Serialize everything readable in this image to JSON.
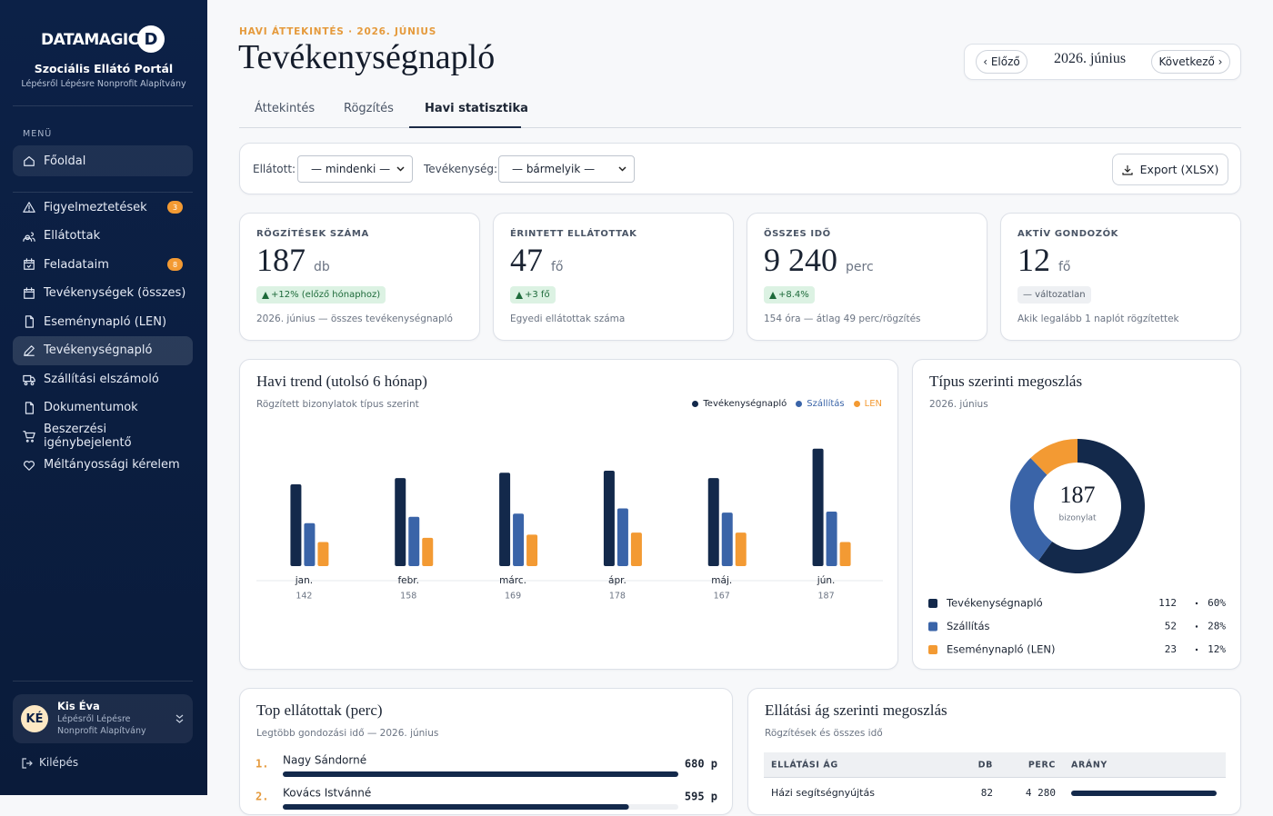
{
  "sidebar": {
    "brand": "DATAMAGIC",
    "brand_icon": "D",
    "portal": "Szociális Ellátó Portál",
    "org": "Lépésről Lépésre Nonprofit Alapítvány",
    "menu_label": "MENÜ",
    "home": "Főoldal",
    "menu": [
      {
        "label": "Figyelmeztetések",
        "badge": 3
      },
      {
        "label": "Ellátottak"
      },
      {
        "label": "Feladataim",
        "badge": 8
      },
      {
        "label": "Tevékenységek (összes)"
      },
      {
        "label": "Eseménynapló (LEN)"
      },
      {
        "label": "Tevékenységnapló",
        "active": true
      },
      {
        "label": "Szállítási elszámoló"
      },
      {
        "label": "Dokumentumok"
      },
      {
        "label": "Beszerzési igénybejelentő"
      },
      {
        "label": "Méltányossági kérelem"
      }
    ],
    "user": {
      "initials": "KÉ",
      "name": "Kis Éva",
      "org": "Lépésről Lépésre Nonprofit Alapítvány"
    },
    "logout": "Kilépés"
  },
  "header": {
    "eyebrow": "HAVI ÁTTEKINTÉS · 2026. JÚNIUS",
    "title": "Tevékenységnapló",
    "prev": "‹ Előző",
    "month": "2026. június",
    "next": "Következő ›"
  },
  "tabs": {
    "items": [
      "Áttekintés",
      "Rögzítés",
      "Havi statisztika"
    ],
    "active": 2
  },
  "filters": {
    "client_label": "Ellátott:",
    "client_value": "— mindenki —",
    "activity_label": "Tevékenység:",
    "activity_value": "— bármelyik —",
    "export": "Export (XLSX)"
  },
  "kpis": [
    {
      "label": "RÖGZÍTÉSEK SZÁMA",
      "value": 187,
      "unit": "db",
      "delta": "+12% (előző hónaphoz)",
      "trend": "up",
      "note": "2026. június — összes tevékenységnapló"
    },
    {
      "label": "ÉRINTETT ELLÁTOTTAK",
      "value": 47,
      "unit": "fő",
      "delta": "+3 fő",
      "trend": "up",
      "note": "Egyedi ellátottak száma"
    },
    {
      "label": "ÖSSZES IDŐ",
      "value": "9 240",
      "unit": "perc",
      "delta": "+8.4%",
      "trend": "up",
      "note": "154 óra — átlag 49 perc/rögzítés"
    },
    {
      "label": "AKTÍV GONDOZÓK",
      "value": 12,
      "unit": "fő",
      "delta": "— változatlan",
      "trend": "flat",
      "note": "Akik legalább 1 naplót rögzítettek"
    }
  ],
  "trend": {
    "type": "bar",
    "title": "Havi trend (utolsó 6 hónap)",
    "subtitle": "Rögzített bizonylatok típus szerint",
    "categories": [
      "jan.",
      "febr.",
      "márc.",
      "ápr.",
      "máj.",
      "jún."
    ],
    "totals": [
      142,
      158,
      169,
      178,
      167,
      187
    ],
    "ylim": [
      0,
      130
    ],
    "series": [
      {
        "name": "Tevékenységnapló",
        "color": "#13294b",
        "values": [
          78,
          84,
          89,
          91,
          84,
          112
        ]
      },
      {
        "name": "Szállítás",
        "color": "#3a64a8",
        "values": [
          41,
          47,
          50,
          55,
          51,
          52
        ]
      },
      {
        "name": "LEN",
        "color": "#f39a33",
        "values": [
          23,
          27,
          30,
          32,
          32,
          23
        ]
      }
    ]
  },
  "donut": {
    "type": "donut",
    "title": "Típus szerinti megoszlás",
    "subtitle": "2026. június",
    "center_value": 187,
    "center_label": "bizonylat",
    "items": [
      {
        "name": "Tevékenységnapló",
        "color": "#13294b",
        "value": 112,
        "percent": 60,
        "percent_label": "60%"
      },
      {
        "name": "Szállítás",
        "color": "#3a64a8",
        "value": 52,
        "percent": 28,
        "percent_label": "28%"
      },
      {
        "name": "Eseménynapló (LEN)",
        "color": "#f39a33",
        "value": 23,
        "percent": 12,
        "percent_label": "12%"
      }
    ]
  },
  "top": {
    "title": "Top ellátottak (perc)",
    "subtitle": "Legtöbb gondozási idő — 2026. június",
    "xlim": [
      0,
      680
    ],
    "rows": [
      {
        "rank": "1.",
        "name": "Nagy Sándorné",
        "value": 680,
        "value_label": "680 p"
      },
      {
        "rank": "2.",
        "name": "Kovács Istvánné",
        "value": 595,
        "value_label": "595 p"
      }
    ]
  },
  "branch": {
    "title": "Ellátási ág szerinti megoszlás",
    "subtitle": "Rögzítések és összes idő",
    "columns": [
      "ELLÁTÁSI ÁG",
      "DB",
      "PERC",
      "ARÁNY"
    ],
    "rows": [
      {
        "name": "Házi segítségnyújtás",
        "db": 82,
        "perc": "4 280"
      }
    ]
  }
}
